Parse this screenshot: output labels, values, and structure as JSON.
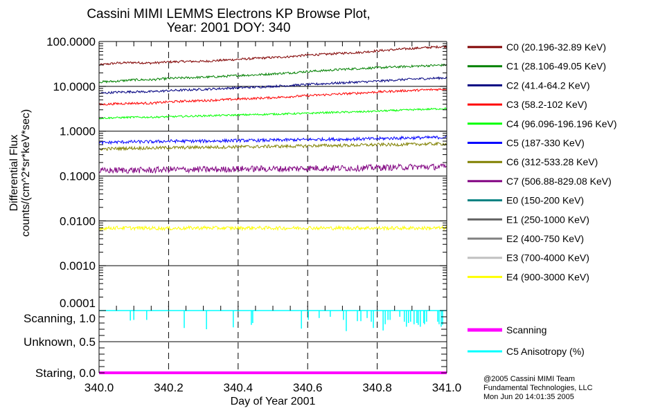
{
  "chart_data": {
    "type": "line",
    "title": [
      "Cassini MIMI LEMMS Electrons KP Browse Plot,",
      "Year: 2001 DOY: 340"
    ],
    "xlabel": "Day of Year 2001",
    "ylabel": [
      "Differential Flux",
      "counts/(cm^2*sr*keV*sec)"
    ],
    "xlim": [
      340.0,
      341.0
    ],
    "x_ticks": [
      "340.0",
      "340.2",
      "340.4",
      "340.6",
      "340.8",
      "341.0"
    ],
    "x_tick_values": [
      340.0,
      340.2,
      340.4,
      340.6,
      340.8,
      341.0
    ],
    "x_dashed_grid": [
      340.2,
      340.4,
      340.6,
      340.8
    ],
    "flux_panel": {
      "scale": "log",
      "ylim": [
        0.0001,
        100
      ],
      "y_ticks": [
        "100.0000",
        "10.0000",
        "1.0000",
        "0.1000",
        "0.0100",
        "0.0010",
        "0.0001"
      ],
      "y_tick_values": [
        100,
        10,
        1,
        0.1,
        0.01,
        0.001,
        0.0001
      ],
      "x_sample": [
        340.0,
        340.05,
        340.1,
        340.15,
        340.2,
        340.25,
        340.3,
        340.35,
        340.4,
        340.45,
        340.5,
        340.55,
        340.6,
        340.65,
        340.7,
        340.75,
        340.8,
        340.85,
        340.9,
        340.95,
        341.0
      ],
      "series": [
        {
          "name": "C0 (20.196-32.89 KeV)",
          "color": "#800000",
          "scatter": 0.025,
          "values": [
            30,
            33,
            34,
            33,
            35,
            36,
            36,
            38,
            40,
            42,
            44,
            46,
            50,
            52,
            55,
            57,
            62,
            66,
            70,
            74,
            78
          ]
        },
        {
          "name": "C1 (28.106-49.05 KeV)",
          "color": "#008000",
          "scatter": 0.025,
          "values": [
            12.5,
            13,
            14,
            14,
            15,
            15.5,
            16,
            16.5,
            17.5,
            18,
            19,
            20,
            21.5,
            22.5,
            24,
            25,
            26,
            27,
            28,
            29,
            30
          ]
        },
        {
          "name": "C2 (41.4-64.2 KeV)",
          "color": "#000080",
          "scatter": 0.025,
          "values": [
            7,
            7.4,
            7.6,
            7.6,
            8,
            8.3,
            8.6,
            8.9,
            9.3,
            9.6,
            10,
            10.5,
            11,
            11.5,
            12,
            12.5,
            13,
            13.8,
            14.5,
            15,
            15.5
          ]
        },
        {
          "name": "C3 (58.2-102 KeV)",
          "color": "#ff0000",
          "scatter": 0.025,
          "values": [
            3.9,
            4.1,
            4.2,
            4.2,
            4.5,
            4.7,
            4.8,
            5,
            5.2,
            5.4,
            5.6,
            5.9,
            6.2,
            6.5,
            6.8,
            7.1,
            7.5,
            7.8,
            8.1,
            8.4,
            8.7
          ]
        },
        {
          "name": "C4 (96.096-196.196 KeV)",
          "color": "#00ff00",
          "scatter": 0.02,
          "values": [
            1.95,
            2,
            2.05,
            2.05,
            2.1,
            2.15,
            2.2,
            2.25,
            2.3,
            2.35,
            2.4,
            2.45,
            2.5,
            2.6,
            2.65,
            2.7,
            2.8,
            2.9,
            3,
            3.1,
            3.2
          ]
        },
        {
          "name": "C5 (187-330 KeV)",
          "color": "#0000ff",
          "scatter": 0.035,
          "values": [
            0.55,
            0.57,
            0.58,
            0.58,
            0.6,
            0.6,
            0.6,
            0.61,
            0.62,
            0.62,
            0.63,
            0.64,
            0.65,
            0.66,
            0.66,
            0.67,
            0.68,
            0.7,
            0.71,
            0.72,
            0.73
          ]
        },
        {
          "name": "C6 (312-533.28 KeV)",
          "color": "#808000",
          "scatter": 0.035,
          "values": [
            0.4,
            0.41,
            0.42,
            0.42,
            0.43,
            0.43,
            0.44,
            0.44,
            0.45,
            0.45,
            0.46,
            0.46,
            0.47,
            0.48,
            0.48,
            0.49,
            0.5,
            0.5,
            0.51,
            0.52,
            0.52
          ]
        },
        {
          "name": "C7 (506.88-829.08 KeV)",
          "color": "#800080",
          "scatter": 0.07,
          "values": [
            0.13,
            0.135,
            0.135,
            0.135,
            0.14,
            0.14,
            0.14,
            0.14,
            0.145,
            0.145,
            0.145,
            0.145,
            0.15,
            0.15,
            0.15,
            0.15,
            0.155,
            0.155,
            0.16,
            0.16,
            0.16
          ]
        },
        {
          "name": "E0 (150-200 KeV)",
          "color": "#008080",
          "scatter": 0,
          "values": []
        },
        {
          "name": "E1 (250-1000 KeV)",
          "color": "#606060",
          "scatter": 0,
          "values": []
        },
        {
          "name": "E2 (400-750 KeV)",
          "color": "#808080",
          "scatter": 0,
          "values": []
        },
        {
          "name": "E3 (700-4000 KeV)",
          "color": "#c0c0c0",
          "scatter": 0,
          "values": []
        },
        {
          "name": "E4 (900-3000 KeV)",
          "color": "#ffff00",
          "scatter": 0.04,
          "values": [
            0.0068,
            0.007,
            0.0069,
            0.0069,
            0.0068,
            0.0069,
            0.007,
            0.0069,
            0.0069,
            0.007,
            0.0069,
            0.0069,
            0.007,
            0.0069,
            0.0069,
            0.007,
            0.0069,
            0.0069,
            0.0069,
            0.0069,
            0.0069
          ]
        }
      ]
    },
    "mode_panel": {
      "ylim": [
        0.0,
        1.0
      ],
      "y_ticks": [
        "Scanning, 1.0",
        "Unknown, 0.5",
        "Staring, 0.0"
      ],
      "y_tick_values": [
        1.0,
        0.5,
        0.0
      ],
      "series": [
        {
          "name": "Scanning",
          "color": "#ff00ff",
          "value": 0.0
        },
        {
          "name": "C5 Anisotropy (%)",
          "color": "#00ffff",
          "baseline": 1.0,
          "dips": [
            [
              340.09,
              0.84
            ],
            [
              340.1,
              0.85
            ],
            [
              340.137,
              0.85
            ],
            [
              340.245,
              0.72
            ],
            [
              340.309,
              0.7
            ],
            [
              340.386,
              0.73
            ],
            [
              340.438,
              0.77
            ],
            [
              340.442,
              0.8
            ],
            [
              340.582,
              0.71
            ],
            [
              340.602,
              0.85
            ],
            [
              340.633,
              0.88
            ],
            [
              340.665,
              0.9
            ],
            [
              340.703,
              0.85
            ],
            [
              340.711,
              0.67
            ],
            [
              340.743,
              0.83
            ],
            [
              340.753,
              0.83
            ],
            [
              340.771,
              0.88
            ],
            [
              340.783,
              0.82
            ],
            [
              340.789,
              0.72
            ],
            [
              340.817,
              0.68
            ],
            [
              340.823,
              0.78
            ],
            [
              340.831,
              0.85
            ],
            [
              340.837,
              0.85
            ],
            [
              340.865,
              0.9
            ],
            [
              340.878,
              0.82
            ],
            [
              340.884,
              0.74
            ],
            [
              340.89,
              0.8
            ],
            [
              340.896,
              0.82
            ],
            [
              340.906,
              0.78
            ],
            [
              340.914,
              0.8
            ],
            [
              340.918,
              0.77
            ],
            [
              340.924,
              0.74
            ],
            [
              340.934,
              0.8
            ],
            [
              340.936,
              0.78
            ],
            [
              340.942,
              0.82
            ],
            [
              340.974,
              0.82
            ],
            [
              340.978,
              0.78
            ],
            [
              340.984,
              0.74
            ],
            [
              340.988,
              0.77
            ]
          ]
        }
      ]
    },
    "legend_placement": "right"
  },
  "footer": [
    "@2005 Cassini MIMI Team",
    "Fundamental Technologies, LLC",
    "Mon Jun 20 14:01:35 2005"
  ]
}
